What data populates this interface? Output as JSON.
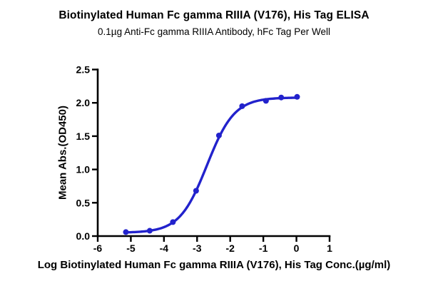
{
  "chart": {
    "title": "Biotinylated Human Fc gamma RIIIA (V176), His Tag ELISA",
    "subtitle": "0.1µg Anti-Fc gamma RIIIA Antibody, hFc Tag Per Well",
    "xlabel": "Log Biotinylated Human Fc gamma RIIIA (V176), His Tag Conc.(µg/ml)",
    "ylabel": "Mean Abs.(OD450)"
  },
  "chart_data": {
    "type": "scatter",
    "title": "Biotinylated Human Fc gamma RIIIA (V176), His Tag ELISA",
    "subtitle": "0.1µg Anti-Fc gamma RIIIA Antibody, hFc Tag Per Well",
    "xlabel": "Log Biotinylated Human Fc gamma RIIIA (V176), His Tag Conc.(µg/ml)",
    "ylabel": "Mean Abs.(OD450)",
    "xlim": [
      -6,
      1
    ],
    "ylim": [
      0,
      2.5
    ],
    "x_ticks": [
      "-6",
      "-5",
      "-4",
      "-3",
      "-2",
      "-1",
      "0",
      "1"
    ],
    "y_ticks": [
      "0.0",
      "0.5",
      "1.0",
      "1.5",
      "2.0",
      "2.5"
    ],
    "grid": false,
    "legend_position": "none",
    "series": [
      {
        "name": "Biotinylated Human Fc gamma RIIIA (V176), His Tag",
        "marker": "circle",
        "x": [
          -5.15,
          -4.43,
          -3.73,
          -3.03,
          -2.34,
          -1.64,
          -0.92,
          -0.46,
          0.02
        ],
        "y": [
          0.06,
          0.08,
          0.21,
          0.68,
          1.51,
          1.95,
          2.03,
          2.08,
          2.09
        ]
      }
    ],
    "fit_curve": {
      "model": "4PL",
      "bottom": 0.05,
      "top": 2.08,
      "logEC50": -2.7,
      "hillslope": 1.05,
      "x_range": [
        -5.15,
        0.02
      ]
    },
    "colors": {
      "curve": "#2222CC",
      "axis": "#000000",
      "background": "#FFFFFF"
    }
  }
}
